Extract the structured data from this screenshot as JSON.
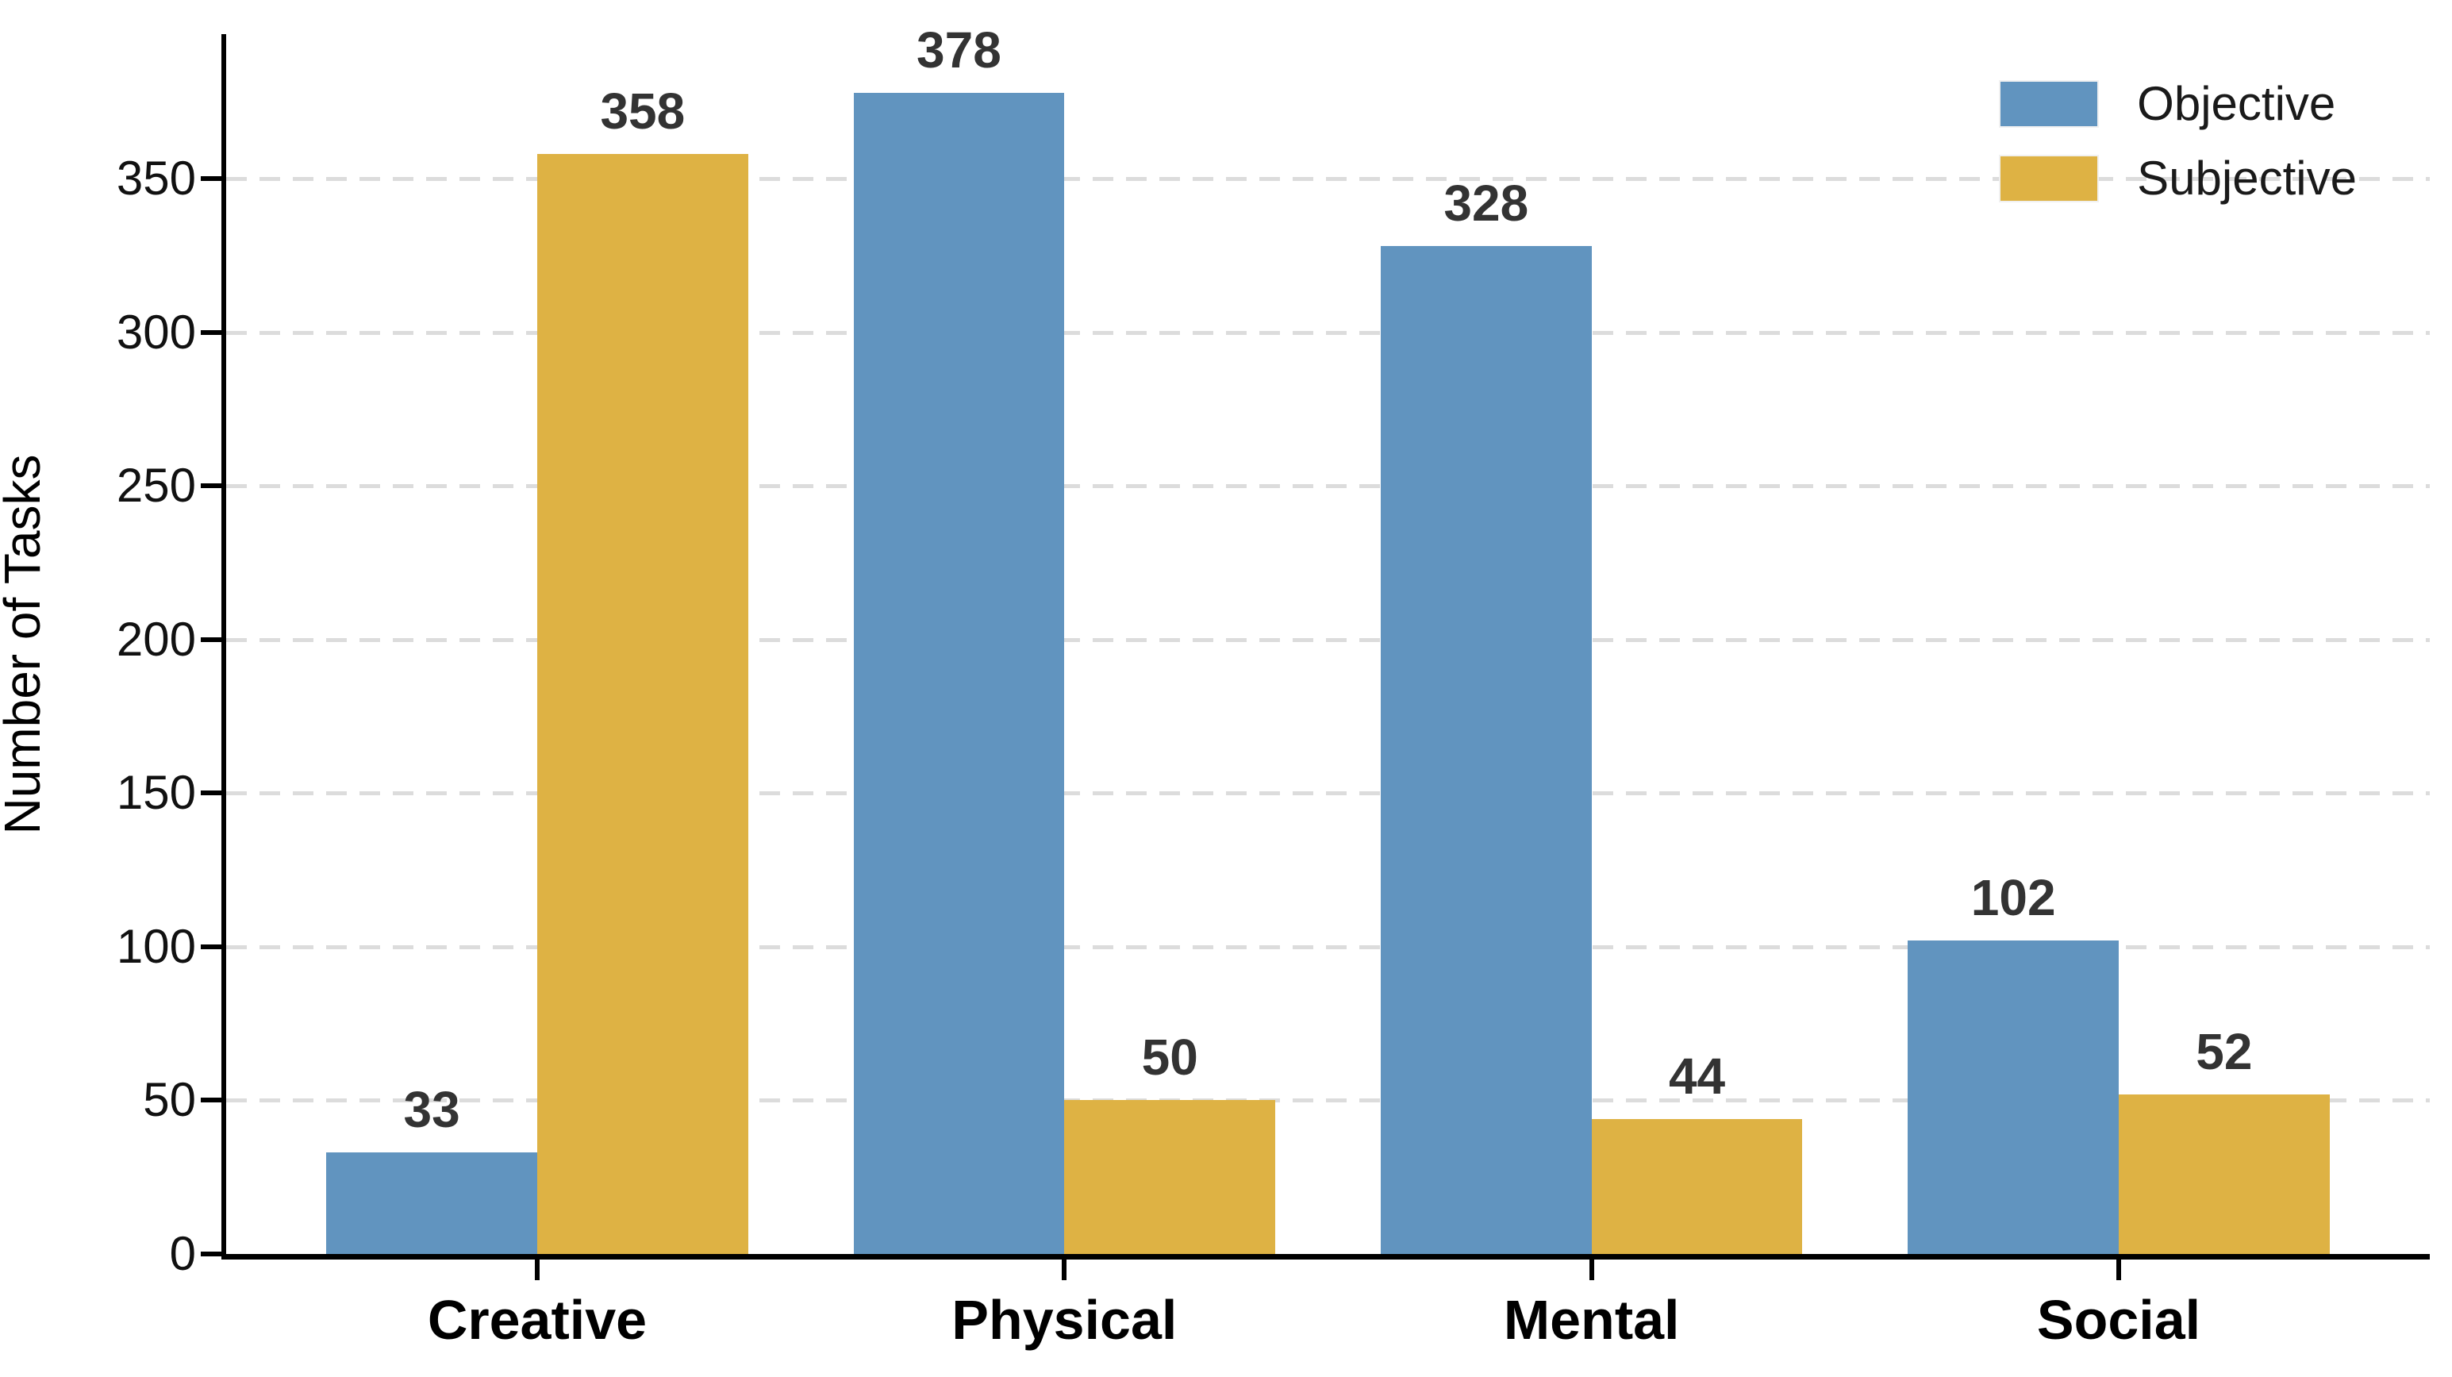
{
  "chart_data": {
    "type": "bar",
    "title": "",
    "xlabel": "",
    "ylabel": "Number of Tasks",
    "categories": [
      "Creative",
      "Physical",
      "Mental",
      "Social"
    ],
    "series": [
      {
        "name": "Objective",
        "color": "#6194BF",
        "values": [
          33,
          378,
          328,
          102
        ]
      },
      {
        "name": "Subjective",
        "color": "#DEB244",
        "values": [
          358,
          50,
          44,
          52
        ]
      }
    ],
    "bar_value_labels_shown": true,
    "ylim": [
      0,
      397
    ],
    "yticks": [
      0,
      50,
      100,
      150,
      200,
      250,
      300,
      350
    ],
    "grid": "horizontal-dashed",
    "gridline_color": "#DCDCDC",
    "axis_color": "#000000",
    "value_label_color": "#333333",
    "legend_position": "upper-right",
    "legend_frame": false
  }
}
